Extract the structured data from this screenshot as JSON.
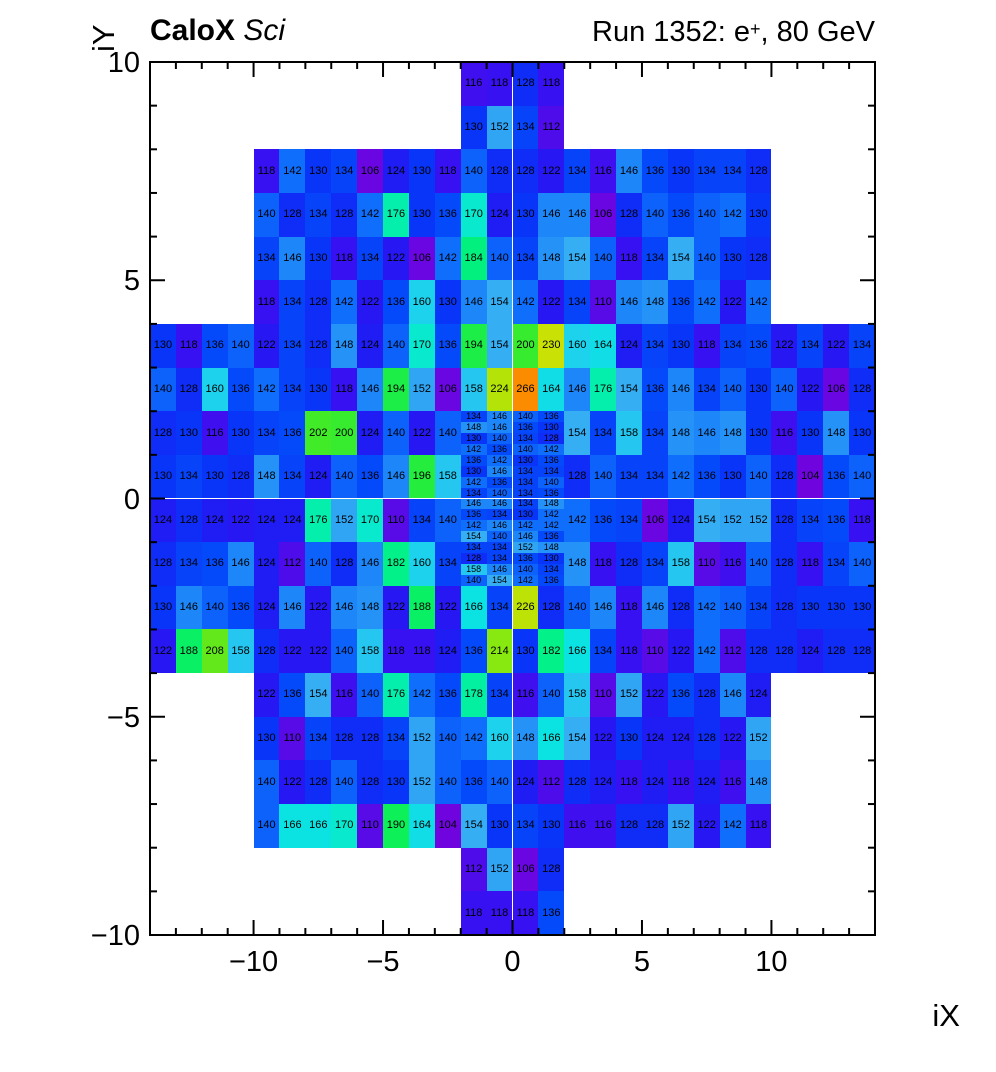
{
  "header": {
    "title_left_bold": "CaloX",
    "title_left_italic": " Sci",
    "title_right_prefix": "Run 1352: e",
    "title_right_sup": "+",
    "title_right_suffix": ", 80 GeV"
  },
  "axes": {
    "x_label": "iX",
    "y_label": "iY",
    "x_major_ticks": [
      "-10",
      "-5",
      "0",
      "5",
      "10"
    ],
    "x_major_values": [
      -10,
      -5,
      0,
      5,
      10
    ],
    "y_major_ticks": [
      "10",
      "5",
      "0",
      "-5",
      "-10"
    ],
    "y_major_values": [
      10,
      5,
      0,
      -5,
      -10
    ]
  },
  "chart_data": {
    "type": "heatmap",
    "title": "Run 1352: e+, 80 GeV",
    "xlabel": "iX",
    "ylabel": "iY",
    "x_range": [
      -14,
      14
    ],
    "y_range": [
      -10,
      10
    ],
    "z_range": [
      100,
      280
    ],
    "legend": "none",
    "grid": "off",
    "palette_stops": [
      [
        100,
        "#7d00d8"
      ],
      [
        106,
        "#6a06e2"
      ],
      [
        112,
        "#4f0cea"
      ],
      [
        118,
        "#3711f1"
      ],
      [
        124,
        "#1f1cf4"
      ],
      [
        130,
        "#0935f8"
      ],
      [
        136,
        "#054afa"
      ],
      [
        142,
        "#0f6efb"
      ],
      [
        148,
        "#2492f7"
      ],
      [
        154,
        "#36aef3"
      ],
      [
        160,
        "#1dd2ed"
      ],
      [
        166,
        "#0be3e2"
      ],
      [
        172,
        "#06ecc4"
      ],
      [
        178,
        "#03f0a0"
      ],
      [
        184,
        "#02f17e"
      ],
      [
        190,
        "#0df058"
      ],
      [
        196,
        "#24ed3e"
      ],
      [
        202,
        "#41eb28"
      ],
      [
        208,
        "#63e91b"
      ],
      [
        214,
        "#87e90f"
      ],
      [
        220,
        "#a5e60a"
      ],
      [
        226,
        "#bce206"
      ],
      [
        232,
        "#d0e004"
      ],
      [
        240,
        "#eed800"
      ],
      [
        250,
        "#fab300"
      ],
      [
        266,
        "#fb8c00"
      ],
      [
        280,
        "#ff6400"
      ]
    ],
    "rows": [
      {
        "iy_top": 10,
        "x_start": -2,
        "values": [
          116,
          118,
          128,
          118
        ]
      },
      {
        "iy_top": 9,
        "x_start": -2,
        "values": [
          130,
          152,
          134,
          112
        ]
      },
      {
        "iy_top": 8,
        "x_start": -10,
        "values": [
          118,
          142,
          130,
          134,
          106,
          124,
          130,
          118,
          140,
          128,
          128,
          122,
          134,
          116,
          146,
          136,
          130,
          134,
          134,
          128
        ]
      },
      {
        "iy_top": 7,
        "x_start": -10,
        "values": [
          140,
          128,
          134,
          128,
          142,
          176,
          130,
          136,
          170,
          124,
          130,
          146,
          146,
          106,
          128,
          140,
          136,
          140,
          142,
          130
        ]
      },
      {
        "iy_top": 6,
        "x_start": -10,
        "values": [
          134,
          146,
          130,
          118,
          134,
          122,
          106,
          142,
          184,
          140,
          134,
          148,
          154,
          140,
          118,
          134,
          154,
          140,
          130,
          128
        ]
      },
      {
        "iy_top": 5,
        "x_start": -10,
        "values": [
          118,
          134,
          128,
          142,
          122,
          136,
          160,
          130,
          146,
          154,
          142,
          122,
          134,
          110,
          146,
          148,
          136,
          142,
          122,
          142
        ]
      },
      {
        "iy_top": 4,
        "x_start": -14,
        "values": [
          130,
          118,
          136,
          140,
          122,
          134,
          128,
          148,
          124,
          140,
          170,
          136,
          194,
          154,
          200,
          230,
          160,
          164,
          124,
          134,
          130,
          118,
          134,
          136,
          122,
          134,
          122,
          134
        ]
      },
      {
        "iy_top": 3,
        "x_start": -14,
        "values": [
          140,
          128,
          160,
          136,
          142,
          134,
          130,
          118,
          146,
          194,
          152,
          106,
          158,
          224,
          266,
          164,
          146,
          176,
          154,
          136,
          146,
          134,
          140,
          130,
          140,
          122,
          106,
          128
        ]
      },
      {
        "iy_top": 2,
        "x_start": -14,
        "values": [
          128,
          130,
          116,
          130,
          134,
          136,
          202,
          200,
          124,
          140,
          122,
          140
        ]
      },
      {
        "iy_top": 2,
        "x_start": 2,
        "values": [
          154,
          134,
          158,
          134,
          148,
          146,
          148,
          130,
          116,
          130,
          148,
          130
        ]
      },
      {
        "iy_top": 1,
        "x_start": -14,
        "values": [
          130,
          134,
          130,
          128,
          148,
          134,
          124,
          140,
          136,
          146,
          196,
          158
        ]
      },
      {
        "iy_top": 1,
        "x_start": 2,
        "values": [
          128,
          140,
          134,
          134,
          142,
          136,
          130,
          140,
          128,
          104,
          136,
          140
        ]
      },
      {
        "iy_top": 0,
        "x_start": -14,
        "values": [
          124,
          128,
          124,
          122,
          124,
          124,
          176,
          152,
          170,
          110,
          134,
          140
        ]
      },
      {
        "iy_top": 0,
        "x_start": 2,
        "values": [
          142,
          136,
          134,
          106,
          124,
          154,
          152,
          152,
          128,
          134,
          136,
          118
        ]
      },
      {
        "iy_top": -1,
        "x_start": -14,
        "values": [
          128,
          134,
          136,
          146,
          124,
          112,
          140,
          128,
          146,
          182,
          160,
          134
        ]
      },
      {
        "iy_top": -1,
        "x_start": 2,
        "values": [
          148,
          118,
          128,
          134,
          158,
          110,
          116,
          140,
          128,
          118,
          134,
          140
        ]
      },
      {
        "iy_top": -2,
        "x_start": -14,
        "values": [
          130,
          146,
          140,
          136,
          124,
          146,
          122,
          146,
          148,
          122,
          188,
          122,
          166,
          134,
          226,
          128,
          140,
          146,
          118,
          146,
          128,
          142,
          140,
          134,
          128,
          130,
          130,
          130
        ]
      },
      {
        "iy_top": -3,
        "x_start": -14,
        "values": [
          122,
          188,
          208,
          158,
          128,
          122,
          122,
          140,
          158,
          118,
          118,
          124,
          136,
          214,
          130,
          182,
          166,
          134,
          118,
          110,
          122,
          142,
          112,
          128,
          128,
          124,
          128,
          128
        ]
      },
      {
        "iy_top": -4,
        "x_start": -10,
        "values": [
          122,
          136,
          154,
          116,
          140,
          176,
          142,
          136,
          178,
          134,
          116,
          140,
          158,
          110,
          152,
          122,
          136,
          128,
          146,
          124
        ]
      },
      {
        "iy_top": -5,
        "x_start": -10,
        "values": [
          130,
          110,
          134,
          128,
          128,
          134,
          152,
          140,
          142,
          160,
          148,
          166,
          154,
          122,
          130,
          124,
          124,
          128,
          122,
          152
        ]
      },
      {
        "iy_top": -6,
        "x_start": -10,
        "values": [
          140,
          122,
          128,
          140,
          128,
          130,
          152,
          140,
          136,
          140,
          124,
          112,
          128,
          124,
          118,
          124,
          118,
          124,
          116,
          148
        ]
      },
      {
        "iy_top": -7,
        "x_start": -10,
        "values": [
          140,
          166,
          166,
          170,
          110,
          190,
          164,
          104,
          154,
          130,
          134,
          130,
          116,
          116,
          128,
          128,
          152,
          122,
          142,
          118
        ]
      },
      {
        "iy_top": -8,
        "x_start": -2,
        "values": [
          112,
          152,
          106,
          128
        ]
      },
      {
        "iy_top": -9,
        "x_start": -2,
        "values": [
          118,
          118,
          118,
          136
        ]
      }
    ],
    "fine_block": {
      "x_start": -2,
      "iy_top": 2,
      "n_cols": 4,
      "sub_row_height_units": 0.25,
      "values": [
        [
          134,
          146,
          140,
          136
        ],
        [
          148,
          146,
          136,
          130
        ],
        [
          130,
          140,
          134,
          128
        ],
        [
          142,
          136,
          140,
          142
        ],
        [
          136,
          142,
          130,
          136
        ],
        [
          130,
          146,
          134,
          134
        ],
        [
          142,
          136,
          134,
          140
        ],
        [
          134,
          140,
          134,
          136
        ],
        [
          146,
          146,
          134,
          148
        ],
        [
          136,
          134,
          130,
          142
        ],
        [
          142,
          146,
          142,
          142
        ],
        [
          154,
          140,
          146,
          136
        ],
        [
          134,
          134,
          152,
          148
        ],
        [
          128,
          134,
          136,
          130
        ],
        [
          158,
          146,
          140,
          134
        ],
        [
          140,
          154,
          142,
          136
        ]
      ]
    }
  }
}
